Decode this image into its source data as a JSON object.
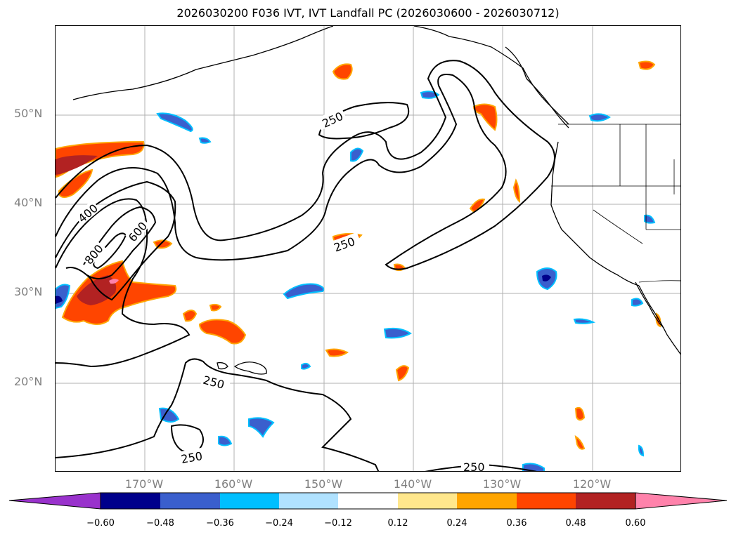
{
  "title": "2026030200 F036 IVT, IVT Landfall PC (2026030600 - 2026030712)",
  "latitude_labels": [
    "50°N",
    "40°N",
    "30°N",
    "20°N"
  ],
  "longitude_labels": [
    "170°W",
    "160°W",
    "150°W",
    "140°W",
    "130°W",
    "120°W"
  ],
  "contour_labels": [
    "250",
    "400",
    "600",
    "800",
    "250",
    "250",
    "250",
    "250"
  ],
  "colorbar": {
    "ticks": [
      "−0.60",
      "−0.48",
      "−0.36",
      "−0.24",
      "−0.12",
      "0.12",
      "0.24",
      "0.36",
      "0.48",
      "0.60"
    ],
    "colors": [
      "#9932CC",
      "#00008B",
      "#3A5FCD",
      "#00BFFF",
      "#B0E2FF",
      "#FFFFFF",
      "#FFE78C",
      "#FFA500",
      "#FF4500",
      "#B22222",
      "#FF82AB"
    ]
  },
  "colors": {
    "negative_strong": "#00008B",
    "negative_mid": "#3A5FCD",
    "negative_light": "#00BFFF",
    "positive_light": "#FFA500",
    "positive_mid": "#FF4500",
    "positive_strong": "#B22222"
  }
}
